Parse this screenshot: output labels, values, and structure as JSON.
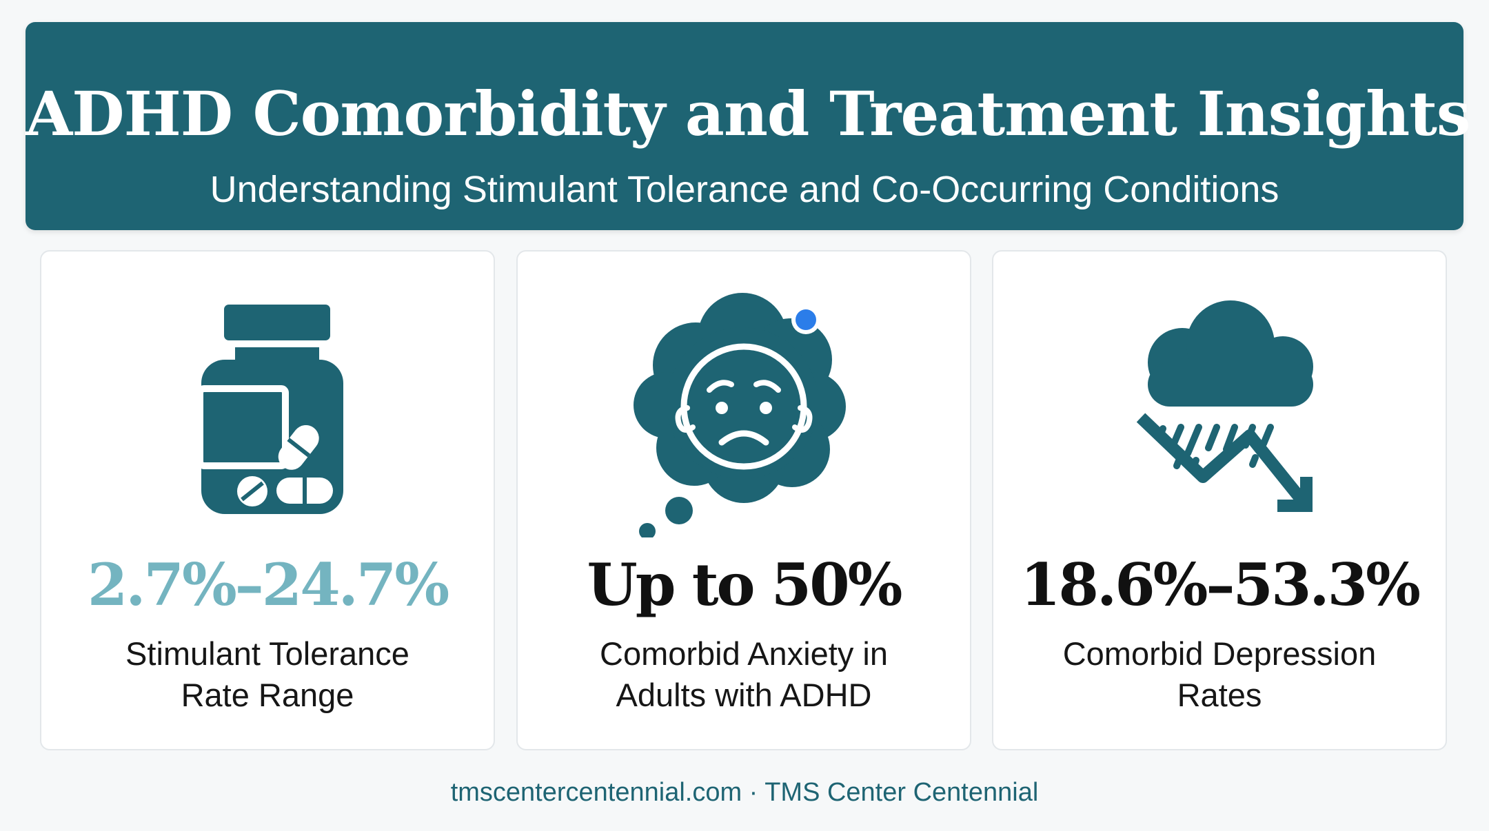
{
  "header": {
    "title": "ADHD Comorbidity and Treatment Insights",
    "subtitle": "Understanding Stimulant Tolerance and Co-Occurring Conditions"
  },
  "cards": [
    {
      "icon": "pill-bottle-icon",
      "stat": "2.7%–24.7%",
      "label_line1": "Stimulant Tolerance",
      "label_line2": "Rate Range",
      "stat_color": "#74b4c0"
    },
    {
      "icon": "anxious-face-thought-cloud-icon",
      "stat": "Up to 50%",
      "label_line1": "Comorbid Anxiety in",
      "label_line2": "Adults with ADHD",
      "stat_color": "#111111"
    },
    {
      "icon": "rain-cloud-down-trend-icon",
      "stat": "18.6%–53.3%",
      "label_line1": "Comorbid Depression",
      "label_line2": "Rates",
      "stat_color": "#111111"
    }
  ],
  "footer": {
    "text": "tmscentercentennial.com · TMS Center Centennial"
  },
  "colors": {
    "primary": "#1e6473",
    "accent_teal": "#74b4c0",
    "accent_blue": "#2b7de9",
    "background": "#f6f8f9"
  }
}
